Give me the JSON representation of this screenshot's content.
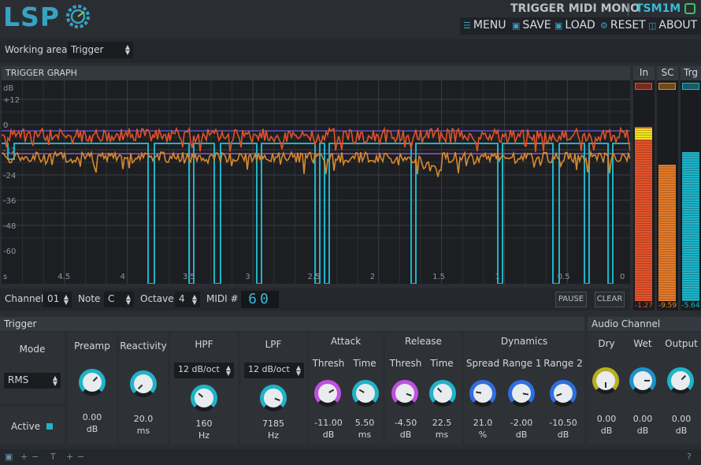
{
  "header": {
    "logo": "LSP",
    "plugin_title": "TRIGGER MIDI MONO",
    "plugin_code": "TSM1M"
  },
  "menu": {
    "menu": "MENU",
    "save": "SAVE",
    "load": "LOAD",
    "reset": "RESET",
    "about": "ABOUT"
  },
  "working_area": {
    "label": "Working area",
    "value": "Trigger"
  },
  "graph": {
    "title": "TRIGGER GRAPH",
    "unit": "dB",
    "y_labels": [
      "+12",
      "0",
      "-12",
      "-24",
      "-36",
      "-48",
      "-60"
    ],
    "x_labels": [
      "s",
      "4.5",
      "4",
      "3.5",
      "3",
      "2.5",
      "2",
      "1.5",
      "1",
      "0.5",
      "0"
    ]
  },
  "meters": {
    "in": {
      "label": "In",
      "value": "-1.27",
      "level": 0.82
    },
    "sc": {
      "label": "SC",
      "value": "-9.59",
      "level": 0.64
    },
    "trg": {
      "label": "Trg",
      "value": "-5.64",
      "level": 0.7
    }
  },
  "midi": {
    "channel_label": "Channel",
    "channel": "01",
    "note_label": "Note",
    "note": "C",
    "octave_label": "Octave",
    "octave": "4",
    "midi_label": "MIDI #",
    "midi_number": "60",
    "pause": "PAUSE",
    "clear": "CLEAR"
  },
  "trigger": {
    "title": "Trigger",
    "mode_label": "Mode",
    "mode": "RMS",
    "active_label": "Active",
    "preamp": {
      "label": "Preamp",
      "value": "0.00",
      "unit": "dB"
    },
    "reactivity": {
      "label": "Reactivity",
      "value": "20.0",
      "unit": "ms"
    },
    "hpf": {
      "label": "HPF",
      "slope": "12 dB/oct",
      "value": "160",
      "unit": "Hz"
    },
    "lpf": {
      "label": "LPF",
      "slope": "12 dB/oct",
      "value": "7185",
      "unit": "Hz"
    },
    "attack": {
      "label": "Attack",
      "thresh_label": "Thresh",
      "time_label": "Time",
      "thresh": "-11.00",
      "thresh_unit": "dB",
      "time": "5.50",
      "time_unit": "ms"
    },
    "release": {
      "label": "Release",
      "thresh_label": "Thresh",
      "time_label": "Time",
      "thresh": "-4.50",
      "thresh_unit": "dB",
      "time": "22.5",
      "time_unit": "ms"
    },
    "dynamics": {
      "label": "Dynamics",
      "spread_label": "Spread",
      "range1_label": "Range 1",
      "range2_label": "Range 2",
      "spread": "21.0",
      "spread_unit": "%",
      "range1": "-2.00",
      "range1_unit": "dB",
      "range2": "-10.50",
      "range2_unit": "dB"
    }
  },
  "audio": {
    "title": "Audio Channel",
    "dry_label": "Dry",
    "wet_label": "Wet",
    "output_label": "Output",
    "dry": "0.00",
    "wet": "0.00",
    "output": "0.00",
    "unit": "dB"
  },
  "colors": {
    "accent": "#37a2c2",
    "trigger_line": "#1fb3c8",
    "input_line": "#e0532b",
    "sc_line": "#d98a2a",
    "threshold_line": "#a05ce0"
  }
}
